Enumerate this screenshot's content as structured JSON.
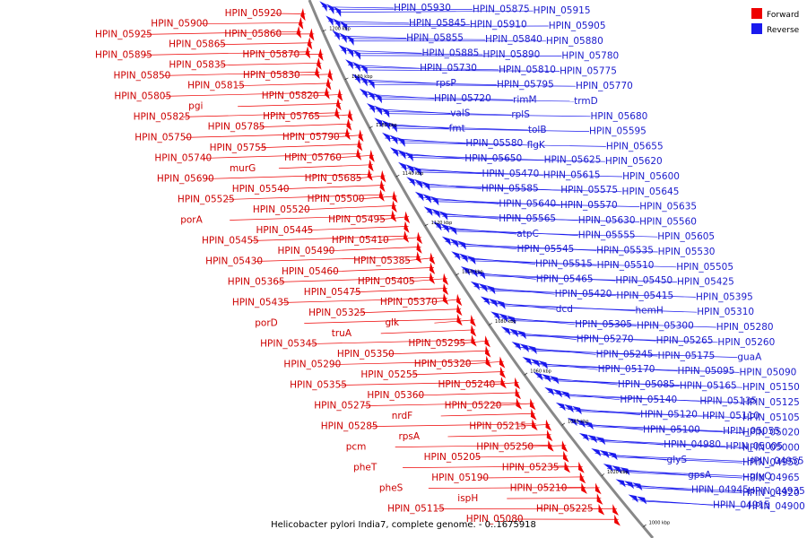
{
  "caption": "Helicobacter pylori India7, complete genome. - 0..1675918",
  "legend": [
    {
      "name": "Forward",
      "color": "#ee0000"
    },
    {
      "name": "Reverse",
      "color": "#1a1aee"
    }
  ],
  "colors": {
    "forward": "#ee0000",
    "reverse": "#1a1aee",
    "backbone": "#888888"
  },
  "ticks": [
    "1200 kbp",
    "1180 kbp",
    "1160 kbp",
    "1140 kbp",
    "1120 kbp",
    "1100 kbp",
    "1080 kbp",
    "1060 kbp",
    "1040 kbp",
    "1020 kbp",
    "1000 kbp"
  ],
  "forward_labels": [
    "HPIN_05920",
    "HPIN_05900",
    "HPIN_05925",
    "HPIN_05860",
    "HPIN_05865",
    "HPIN_05895",
    "HPIN_05870",
    "HPIN_05835",
    "HPIN_05850",
    "HPIN_05830",
    "HPIN_05815",
    "HPIN_05805",
    "HPIN_05820",
    "pgi",
    "HPIN_05825",
    "HPIN_05765",
    "HPIN_05785",
    "HPIN_05750",
    "HPIN_05790",
    "HPIN_05755",
    "HPIN_05740",
    "HPIN_05760",
    "murG",
    "HPIN_05690",
    "HPIN_05685",
    "HPIN_05540",
    "HPIN_05525",
    "HPIN_05500",
    "HPIN_05520",
    "porA",
    "HPIN_05495",
    "HPIN_05445",
    "HPIN_05455",
    "HPIN_05410",
    "HPIN_05490",
    "HPIN_05430",
    "HPIN_05385",
    "HPIN_05460",
    "HPIN_05365",
    "HPIN_05405",
    "HPIN_05475",
    "HPIN_05435",
    "HPIN_05370",
    "HPIN_05325",
    "porD",
    "glk",
    "truA",
    "HPIN_05345",
    "HPIN_05295",
    "HPIN_05350",
    "HPIN_05290",
    "HPIN_05320",
    "HPIN_05255",
    "HPIN_05355",
    "HPIN_05240",
    "HPIN_05360",
    "HPIN_05275",
    "HPIN_05220",
    "nrdF",
    "HPIN_05285",
    "HPIN_05215",
    "rpsA",
    "pcm",
    "HPIN_05250",
    "HPIN_05205",
    "pheT",
    "HPIN_05235",
    "HPIN_05190",
    "pheS",
    "HPIN_05210",
    "ispH",
    "HPIN_05115",
    "HPIN_05225",
    "HPIN_05080"
  ],
  "reverse_labels": [
    "HPIN_05930",
    "HPIN_05875",
    "HPIN_05915",
    "HPIN_05845",
    "HPIN_05910",
    "HPIN_05905",
    "HPIN_05855",
    "HPIN_05840",
    "HPIN_05880",
    "HPIN_05885",
    "HPIN_05890",
    "HPIN_05780",
    "HPIN_05730",
    "HPIN_05810",
    "HPIN_05775",
    "rpsP",
    "HPIN_05795",
    "HPIN_05770",
    "HPIN_05720",
    "rimM",
    "trmD",
    "valS",
    "rplS",
    "HPIN_05680",
    "fmt",
    "tolB",
    "HPIN_05595",
    "HPIN_05580",
    "flgK",
    "HPIN_05655",
    "HPIN_05650",
    "HPIN_05625",
    "HPIN_05620",
    "HPIN_05470",
    "HPIN_05615",
    "HPIN_05600",
    "HPIN_05585",
    "HPIN_05575",
    "HPIN_05645",
    "HPIN_05640",
    "HPIN_05570",
    "HPIN_05635",
    "HPIN_05565",
    "HPIN_05630",
    "HPIN_05560",
    "atpC",
    "HPIN_05555",
    "HPIN_05605",
    "HPIN_05545",
    "HPIN_05535",
    "HPIN_05530",
    "HPIN_05515",
    "HPIN_05510",
    "HPIN_05505",
    "HPIN_05465",
    "HPIN_05450",
    "HPIN_05425",
    "HPIN_05420",
    "HPIN_05415",
    "HPIN_05395",
    "dcd",
    "hemH",
    "HPIN_05310",
    "HPIN_05305",
    "HPIN_05300",
    "HPIN_05280",
    "HPIN_05270",
    "HPIN_05265",
    "HPIN_05260",
    "HPIN_05245",
    "HPIN_05175",
    "guaA",
    "HPIN_05170",
    "HPIN_05095",
    "HPIN_05090",
    "HPIN_05085",
    "HPIN_05165",
    "HPIN_05150",
    "HPIN_05140",
    "HPIN_05135",
    "HPIN_05125",
    "HPIN_05120",
    "HPIN_05110",
    "HPIN_05105",
    "HPIN_05100",
    "HPIN_05055",
    "HPIN_05020",
    "HPIN_04980",
    "HPIN_05005",
    "HPIN_05000",
    "glyS",
    "HPIN_04955",
    "HPIN_04950",
    "gpsA",
    "glyQ",
    "HPIN_04965",
    "HPIN_04945",
    "HPIN_04935",
    "HPIN_04920",
    "HPIN_04915",
    "HPIN_04900"
  ]
}
